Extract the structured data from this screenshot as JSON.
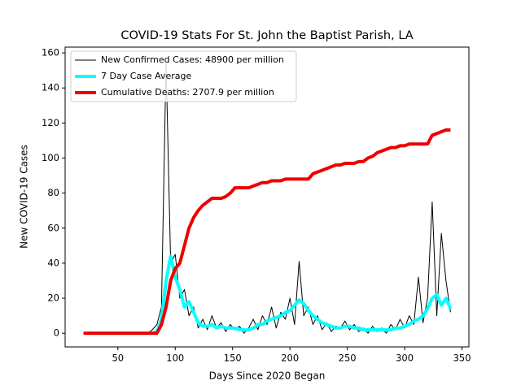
{
  "chart_data": {
    "type": "line",
    "title": "COVID-19 Stats For St. John the Baptist Parish, LA",
    "x_label": "Days Since 2020 Began",
    "y_label": "New COVID-19 Cases",
    "x": [
      20,
      24,
      28,
      32,
      36,
      40,
      44,
      48,
      52,
      56,
      60,
      64,
      68,
      72,
      76,
      80,
      84,
      88,
      92,
      96,
      100,
      104,
      108,
      112,
      116,
      120,
      124,
      128,
      132,
      136,
      140,
      144,
      148,
      152,
      156,
      160,
      164,
      168,
      172,
      176,
      180,
      184,
      188,
      192,
      196,
      200,
      204,
      208,
      212,
      216,
      220,
      224,
      228,
      232,
      236,
      240,
      244,
      248,
      252,
      256,
      260,
      264,
      268,
      272,
      276,
      280,
      284,
      288,
      292,
      296,
      300,
      304,
      308,
      312,
      316,
      320,
      324,
      328,
      332,
      336,
      340
    ],
    "series": [
      {
        "name": "New Confirmed Cases: 48900 per million",
        "color": "#000000",
        "linewidth": 1,
        "values": [
          0,
          0,
          0,
          0,
          0,
          0,
          0,
          0,
          0,
          0,
          0,
          0,
          0,
          0,
          0,
          2,
          5,
          15,
          155,
          40,
          45,
          20,
          25,
          10,
          15,
          3,
          8,
          2,
          10,
          3,
          6,
          1,
          5,
          2,
          4,
          0,
          3,
          8,
          2,
          10,
          5,
          15,
          3,
          12,
          8,
          20,
          5,
          41,
          10,
          15,
          5,
          10,
          2,
          6,
          1,
          4,
          3,
          7,
          2,
          5,
          1,
          3,
          0,
          4,
          1,
          3,
          0,
          5,
          2,
          8,
          3,
          10,
          5,
          32,
          6,
          20,
          75,
          10,
          57,
          30,
          12
        ]
      },
      {
        "name": "7 Day Case Average",
        "color": "#00ffff",
        "linewidth": 4,
        "values": [
          0,
          0,
          0,
          0,
          0,
          0,
          0,
          0,
          0,
          0,
          0,
          0,
          0,
          0,
          0,
          0,
          1,
          8,
          30,
          44,
          32,
          25,
          15,
          18,
          12,
          6,
          4,
          4,
          5,
          3,
          4,
          3,
          3,
          3,
          2,
          2,
          2,
          3,
          5,
          5,
          7,
          8,
          9,
          10,
          12,
          13,
          16,
          19,
          17,
          13,
          10,
          8,
          6,
          5,
          4,
          3,
          3,
          4,
          4,
          3,
          3,
          2,
          2,
          2,
          2,
          2,
          2,
          2,
          3,
          3,
          4,
          5,
          7,
          8,
          10,
          14,
          20,
          22,
          16,
          20,
          14
        ]
      },
      {
        "name": "Cumulative Deaths: 2707.9 per million",
        "color": "#ee0000",
        "linewidth": 4,
        "values": [
          0,
          0,
          0,
          0,
          0,
          0,
          0,
          0,
          0,
          0,
          0,
          0,
          0,
          0,
          0,
          0,
          0,
          5,
          15,
          30,
          37,
          40,
          50,
          60,
          66,
          70,
          73,
          75,
          77,
          77,
          77,
          78,
          80,
          83,
          83,
          83,
          83,
          84,
          85,
          86,
          86,
          87,
          87,
          87,
          88,
          88,
          88,
          88,
          88,
          88,
          91,
          92,
          93,
          94,
          95,
          96,
          96,
          97,
          97,
          97,
          98,
          98,
          100,
          101,
          103,
          104,
          105,
          106,
          106,
          107,
          107,
          108,
          108,
          108,
          108,
          108,
          113,
          114,
          115,
          116,
          116
        ]
      }
    ],
    "xlim": [
      4,
      356
    ],
    "xticks": [
      50,
      100,
      150,
      200,
      250,
      300,
      350
    ],
    "ylim": [
      -7.8,
      163.3
    ],
    "yticks": [
      0,
      20,
      40,
      60,
      80,
      100,
      120,
      140,
      160
    ],
    "legend": "upper left"
  }
}
